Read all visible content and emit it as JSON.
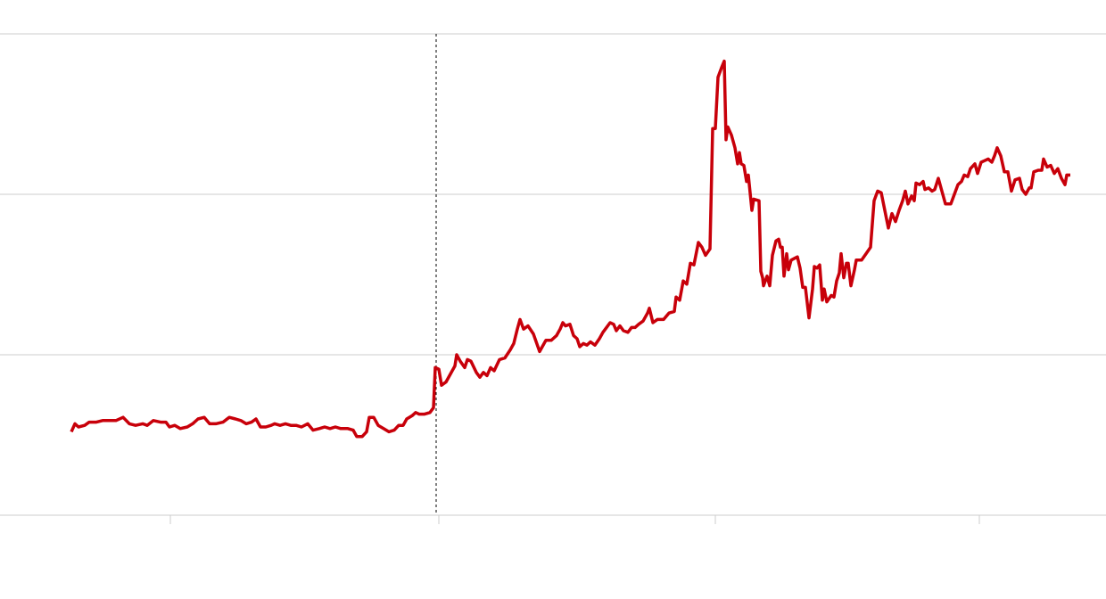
{
  "chart_data": {
    "type": "line",
    "x": [
      8.0,
      8.4,
      8.8,
      9.5,
      10.0,
      10.8,
      11.5,
      12.2,
      13.0,
      13.8,
      14.5,
      15.2,
      16.0,
      16.5,
      17.2,
      18.0,
      18.6,
      19.0,
      19.6,
      20.2,
      21.0,
      21.6,
      22.2,
      22.9,
      23.5,
      24.2,
      25.0,
      25.7,
      26.4,
      27.0,
      27.6,
      28.2,
      28.7,
      29.2,
      29.8,
      30.4,
      30.8,
      31.4,
      32.0,
      32.6,
      33.2,
      33.8,
      34.5,
      35.1,
      35.8,
      36.4,
      37.0,
      37.6,
      38.2,
      39.0,
      39.6,
      40.0,
      40.6,
      41.1,
      41.4,
      41.9,
      42.4,
      43.0,
      43.6,
      44.2,
      44.7,
      45.2,
      45.6,
      46.2,
      46.6,
      47.0,
      47.6,
      48.2,
      48.6,
      48.8,
      49.2,
      49.5,
      50.0,
      50.5,
      51.0,
      51.2,
      51.6,
      52.1,
      52.4,
      52.8,
      53.4,
      53.8,
      54.2,
      54.6,
      55.0,
      55.4,
      56.0,
      56.6,
      57.2,
      57.6,
      58.0,
      58.3,
      58.7,
      59.2,
      59.8,
      60.5,
      61.2,
      61.8,
      62.4,
      62.8,
      63.1,
      63.4,
      63.9,
      64.3,
      64.7,
      65.0,
      65.4,
      65.8,
      66.2,
      66.7,
      67.2,
      67.6,
      68.0,
      68.4,
      68.8,
      69.1,
      69.5,
      69.9,
      70.4,
      70.8,
      71.2,
      71.6,
      72.1,
      72.6,
      72.8,
      73.2,
      73.7,
      74.4,
      75.0,
      75.6,
      75.8,
      76.2,
      76.6,
      77.0,
      77.4,
      77.8,
      78.3,
      78.7,
      79.1,
      79.6,
      79.9,
      80.2,
      80.5,
      80.9,
      81.2,
      81.4,
      81.6,
      82.0,
      82.4,
      82.7,
      82.9,
      83.1,
      83.4,
      83.7,
      83.9,
      84.3,
      84.5,
      85.1,
      85.3,
      85.5,
      85.6,
      86.0,
      86.3,
      86.6,
      87.0,
      87.3,
      87.5,
      87.7,
      87.9,
      88.2,
      88.4,
      88.7,
      89.4,
      89.7,
      90.0,
      90.3,
      90.7,
      91.1,
      91.3,
      91.6,
      91.9,
      92.2,
      92.4,
      92.7,
      93.2,
      93.5,
      93.8,
      94.1,
      94.3,
      94.6,
      94.9,
      95.1,
      95.4,
      95.8,
      96.0,
      96.6,
      97.1,
      97.6,
      98.0,
      98.4,
      98.8,
      99.2,
      99.6,
      100.0,
      100.4,
      100.8,
      101.2,
      101.5,
      101.8,
      102.2,
      102.5,
      102.7,
      103.1,
      103.5,
      103.7,
      104.1,
      104.5,
      104.8,
      105.2,
      105.5,
      106.0,
      106.6,
      107.0,
      107.4,
      107.8,
      108.1,
      108.5,
      108.8,
      109.3,
      109.6,
      110.0,
      110.4,
      110.8,
      111.2,
      111.5,
      111.8,
      112.2,
      112.6,
      113.0,
      113.4,
      113.8,
      114.3,
      114.6,
      115.0,
      115.4,
      115.6,
      115.9,
      116.4,
      116.8,
      117.0,
      117.4,
      117.8,
      118.2,
      118.6,
      119.0,
      119.4,
      119.6,
      120.0
    ],
    "series": [
      {
        "color": "#c8000a",
        "values": [
          5.2,
          5.7,
          5.5,
          5.6,
          5.8,
          5.8,
          5.9,
          5.9,
          5.9,
          6.1,
          5.7,
          5.6,
          5.7,
          5.6,
          5.9,
          5.8,
          5.8,
          5.5,
          5.6,
          5.4,
          5.5,
          5.7,
          6.0,
          6.1,
          5.7,
          5.7,
          5.8,
          6.1,
          6.0,
          5.9,
          5.7,
          5.8,
          6.0,
          5.5,
          5.5,
          5.6,
          5.7,
          5.6,
          5.7,
          5.6,
          5.6,
          5.5,
          5.7,
          5.3,
          5.4,
          5.5,
          5.4,
          5.5,
          5.4,
          5.4,
          5.3,
          4.9,
          4.9,
          5.2,
          6.1,
          6.1,
          5.6,
          5.4,
          5.2,
          5.3,
          5.6,
          5.6,
          6.0,
          6.2,
          6.4,
          6.3,
          6.3,
          6.4,
          6.7,
          9.2,
          9.1,
          8.1,
          8.3,
          8.8,
          9.3,
          10.0,
          9.6,
          9.2,
          9.7,
          9.6,
          8.9,
          8.6,
          8.9,
          8.7,
          9.2,
          9.0,
          9.7,
          9.8,
          10.3,
          10.7,
          11.6,
          12.2,
          11.6,
          11.8,
          11.3,
          10.2,
          10.9,
          10.9,
          11.2,
          11.6,
          12.0,
          11.8,
          11.9,
          11.2,
          11.0,
          10.5,
          10.7,
          10.6,
          10.8,
          10.6,
          11.0,
          11.4,
          11.7,
          12.0,
          11.9,
          11.5,
          11.8,
          11.5,
          11.4,
          11.7,
          11.7,
          11.9,
          12.1,
          12.6,
          12.9,
          12.0,
          12.2,
          12.2,
          12.6,
          12.7,
          13.6,
          13.4,
          14.6,
          14.4,
          15.7,
          15.6,
          17.0,
          16.7,
          16.2,
          16.6,
          24.1,
          24.1,
          27.3,
          27.9,
          28.3,
          23.4,
          24.2,
          23.7,
          22.9,
          21.9,
          22.6,
          21.9,
          21.8,
          20.8,
          21.2,
          19.0,
          19.7,
          19.6,
          15.2,
          14.8,
          14.3,
          14.9,
          14.3,
          16.2,
          17.1,
          17.2,
          16.7,
          16.7,
          14.9,
          16.3,
          15.3,
          15.9,
          16.1,
          15.4,
          14.2,
          14.2,
          12.3,
          14.1,
          15.5,
          15.4,
          15.6,
          13.4,
          14.1,
          13.3,
          13.7,
          13.6,
          14.6,
          15.1,
          16.3,
          14.8,
          15.7,
          15.7,
          14.3,
          15.3,
          15.9,
          15.9,
          16.3,
          16.7,
          19.6,
          20.2,
          20.1,
          19.0,
          17.9,
          18.8,
          18.3,
          19.0,
          19.6,
          20.2,
          19.4,
          19.9,
          19.6,
          20.7,
          20.6,
          20.8,
          20.3,
          20.4,
          20.2,
          20.3,
          21.0,
          20.4,
          19.4,
          19.4,
          20.0,
          20.6,
          20.8,
          21.2,
          21.1,
          21.6,
          21.9,
          21.3,
          22.0,
          22.1,
          22.2,
          22.0,
          22.4,
          22.9,
          22.4,
          21.4,
          21.4,
          20.2,
          20.9,
          21.0,
          20.3,
          20.0,
          20.4,
          20.4,
          21.4,
          21.5,
          21.5,
          22.2,
          21.7,
          21.8,
          21.3,
          21.6,
          21.0,
          20.6,
          21.2,
          21.2
        ]
      }
    ],
    "xlim": [
      0,
      124
    ],
    "xticks": [
      19.1,
      49.2,
      80.2,
      109.8
    ],
    "ylim": [
      0,
      30
    ],
    "yticks": [
      0,
      10,
      20,
      30
    ],
    "vline": 48.9,
    "grid": true
  }
}
